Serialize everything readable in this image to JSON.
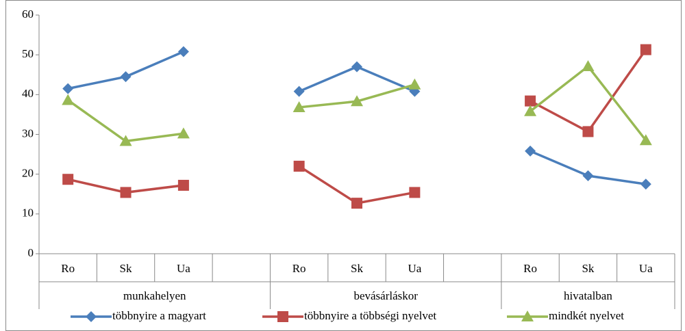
{
  "chart_data": {
    "type": "line",
    "categories": [
      "Ro",
      "Sk",
      "Ua",
      null,
      "Ro",
      "Sk",
      "Ua",
      null,
      "Ro",
      "Sk",
      "Ua"
    ],
    "groups": [
      "munkahelyen",
      "bevásárláskor",
      "hivatalban"
    ],
    "series": [
      {
        "name": "többnyire a magyart",
        "color": "#4a7ebb",
        "marker": "diamond",
        "values": [
          41.5,
          44.5,
          50.8,
          null,
          40.8,
          47,
          40.8,
          null,
          25.8,
          19.6,
          17.5
        ]
      },
      {
        "name": "többnyire a többségi nyelvet",
        "color": "#be4b48",
        "marker": "square",
        "values": [
          18.7,
          15.4,
          17.2,
          null,
          22,
          12.7,
          15.4,
          null,
          38.4,
          30.7,
          51.3
        ]
      },
      {
        "name": "mindkét nyelvet",
        "color": "#98b954",
        "marker": "triangle",
        "values": [
          38.6,
          28.3,
          30.2,
          null,
          36.8,
          38.3,
          42.5,
          null,
          35.8,
          47.1,
          28.5
        ]
      }
    ],
    "ylim": [
      0,
      60
    ],
    "yticks": [
      0,
      10,
      20,
      30,
      40,
      50,
      60
    ],
    "grid": false,
    "legend": "bottom"
  }
}
